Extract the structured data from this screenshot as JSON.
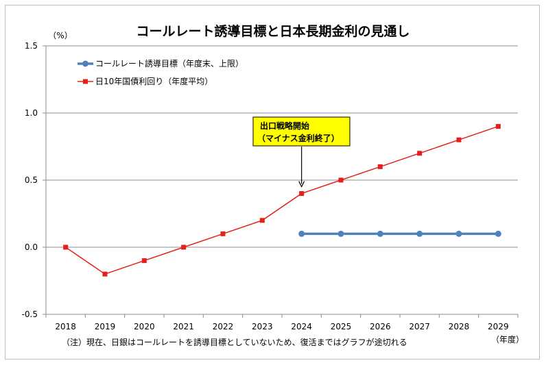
{
  "chart_data": {
    "type": "line",
    "title": "コールレート誘導目標と日本長期金利の見通し",
    "ylabel": "（%）",
    "xlabel": "（年度）",
    "ylim": [
      -0.5,
      1.5
    ],
    "yticks": [
      "1.5",
      "1.0",
      "0.5",
      "0.0",
      "-0.5"
    ],
    "ytick_values": [
      1.5,
      1.0,
      0.5,
      0.0,
      -0.5
    ],
    "categories": [
      "2018",
      "2019",
      "2020",
      "2021",
      "2022",
      "2023",
      "2024",
      "2025",
      "2026",
      "2027",
      "2028",
      "2029"
    ],
    "grid": true,
    "legend_position": "top-left",
    "series": [
      {
        "name": "コールレート誘導目標（年度末、上限）",
        "color": "#4f81bd",
        "marker": "circle",
        "values": [
          null,
          null,
          null,
          null,
          null,
          null,
          0.1,
          0.1,
          0.1,
          0.1,
          0.1,
          0.1
        ]
      },
      {
        "name": "日10年国債利回り（年度平均）",
        "color": "#e3201b",
        "marker": "square",
        "values": [
          0.0,
          -0.2,
          -0.1,
          0.0,
          0.1,
          0.2,
          0.4,
          0.5,
          0.6,
          0.7,
          0.8,
          0.9
        ]
      }
    ],
    "annotation": {
      "lines": [
        "出口戦略開始",
        "（マイナス金利終了）"
      ],
      "category": "2024",
      "background": "#ffff00"
    },
    "note": "（注）現在、日銀はコールレートを誘導目標としていないため、復活まではグラフが途切れる"
  }
}
